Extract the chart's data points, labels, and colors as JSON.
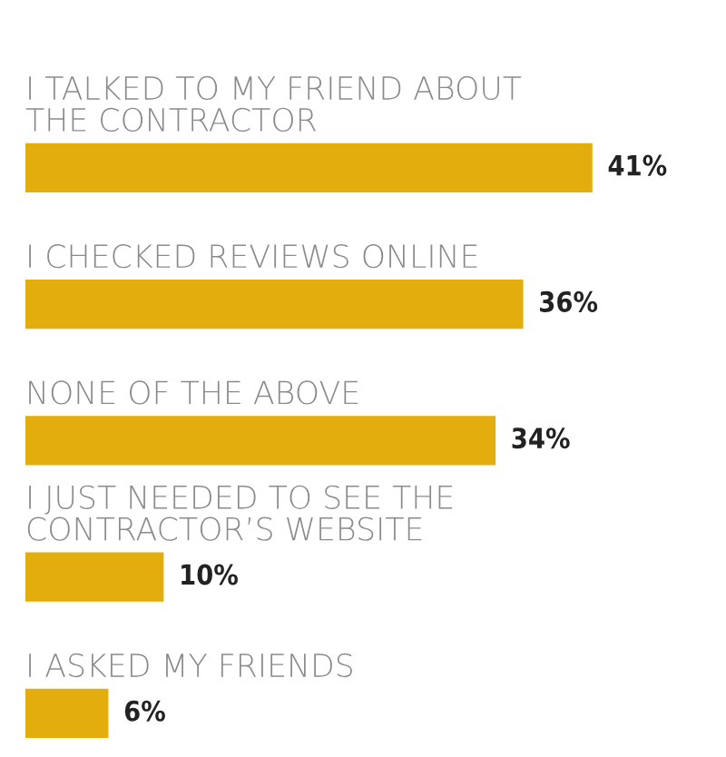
{
  "chart_data": {
    "type": "bar",
    "orientation": "horizontal",
    "categories": [
      "I TALKED TO MY FRIEND ABOUT\nTHE CONTRACTOR",
      "I CHECKED REVIEWS ONLINE",
      "NONE OF THE ABOVE",
      "I JUST NEEDED TO SEE THE\nCONTRACTOR’S WEBSITE",
      "I ASKED MY FRIENDS"
    ],
    "values": [
      41,
      36,
      34,
      10,
      6
    ],
    "value_labels": [
      "41%",
      "36%",
      "34%",
      "10%",
      "6%"
    ],
    "color": "#e3ad0d"
  }
}
